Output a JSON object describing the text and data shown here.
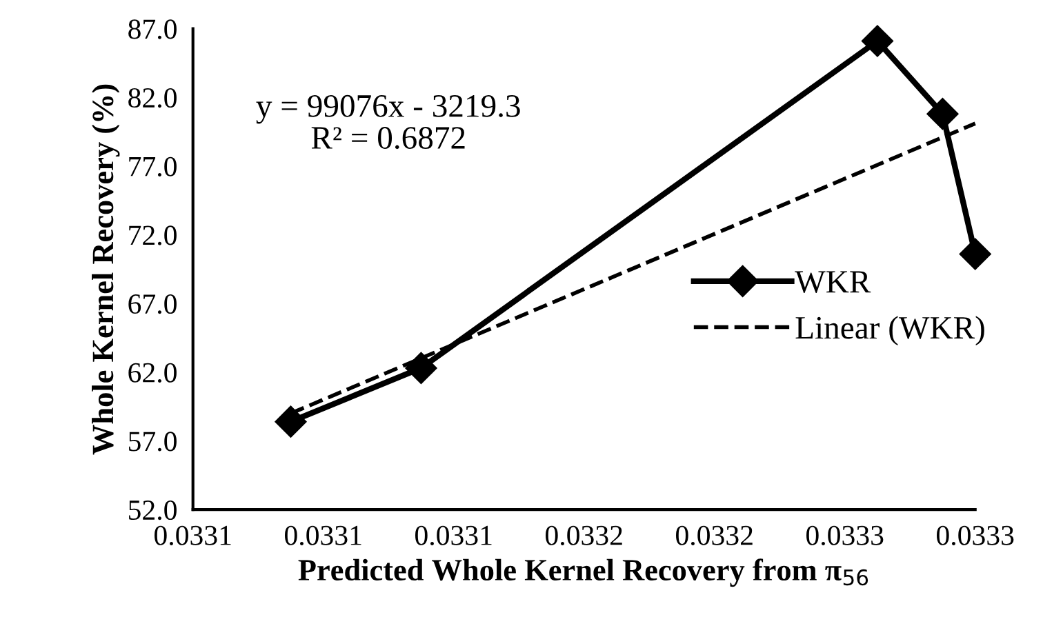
{
  "chart_data": {
    "type": "line",
    "xlabel": "Predicted Whole Kernel Recovery from π$_{56}$",
    "ylabel": "Whole Kernel Recovery (%)",
    "annotations": [
      "y = 99076x - 3219.3\nR² = 0.6872"
    ],
    "xlim": [
      0.03305,
      0.03329
    ],
    "xticks": [
      {
        "value": 0.03305,
        "label": "0.0331"
      },
      {
        "value": 0.03309,
        "label": "0.0331"
      },
      {
        "value": 0.03313,
        "label": "0.0331"
      },
      {
        "value": 0.03317,
        "label": "0.0332"
      },
      {
        "value": 0.03321,
        "label": "0.0332"
      },
      {
        "value": 0.03325,
        "label": "0.0333"
      },
      {
        "value": 0.03329,
        "label": "0.0333"
      }
    ],
    "ylim": [
      52,
      87
    ],
    "yticks": [
      {
        "value": 52,
        "label": "52.0"
      },
      {
        "value": 57,
        "label": "57.0"
      },
      {
        "value": 62,
        "label": "62.0"
      },
      {
        "value": 67,
        "label": "67.0"
      },
      {
        "value": 72,
        "label": "72.0"
      },
      {
        "value": 77,
        "label": "77.0"
      },
      {
        "value": 82,
        "label": "82.0"
      },
      {
        "value": 87,
        "label": "87.0"
      }
    ],
    "grid": false,
    "legend": "center right",
    "series": [
      {
        "name": "WKR",
        "color": "#000000",
        "marker": "diamond",
        "line_style": "solid",
        "x": [
          0.03308,
          0.03312,
          0.03326,
          0.03328,
          0.03329
        ],
        "values": [
          58.4,
          62.3,
          86.1,
          80.8,
          70.6
        ]
      },
      {
        "name": "Linear (WKR)",
        "color": "#000000",
        "marker": "none",
        "line_style": "dashed",
        "x": [
          0.03308,
          0.03329
        ],
        "values": [
          59.0,
          80.1
        ]
      }
    ]
  }
}
